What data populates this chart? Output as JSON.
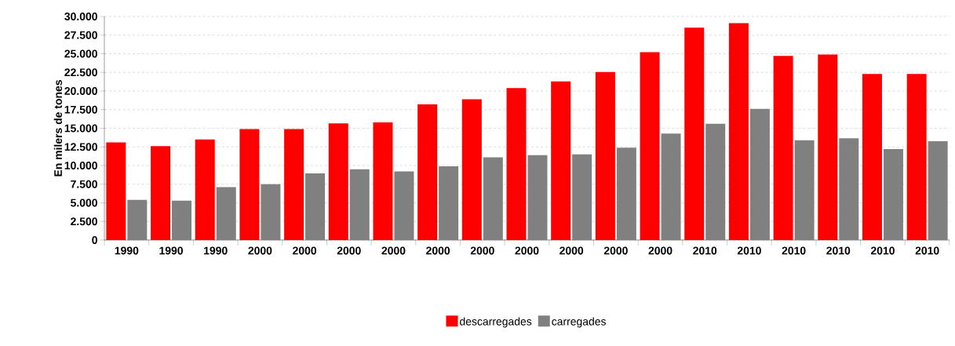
{
  "chart_data": {
    "type": "bar",
    "ylabel": "En milers de tones",
    "categories": [
      "1990",
      "1990",
      "1990",
      "2000",
      "2000",
      "2000",
      "2000",
      "2000",
      "2000",
      "2000",
      "2000",
      "2000",
      "2000",
      "2010",
      "2010",
      "2010",
      "2010",
      "2010",
      "2010"
    ],
    "series": [
      {
        "name": "descarregades",
        "color": "#ff0000",
        "values": [
          13100,
          12600,
          13500,
          14900,
          14900,
          15650,
          15800,
          18200,
          18900,
          20400,
          21300,
          22550,
          25200,
          28500,
          29100,
          24700,
          24900,
          22300,
          22300
        ]
      },
      {
        "name": "carregades",
        "color": "#808080",
        "values": [
          5400,
          5300,
          7100,
          7500,
          8950,
          9500,
          9200,
          9900,
          11100,
          11400,
          11500,
          12400,
          14300,
          15600,
          17600,
          13400,
          13650,
          12200,
          13250
        ]
      }
    ],
    "ylim": [
      0,
      30000
    ],
    "yticks": [
      0,
      {
        "value": 2500,
        "label": "2.500"
      },
      {
        "value": 5000,
        "label": "5.000"
      },
      {
        "value": 7500,
        "label": "7.500"
      },
      {
        "value": 10000,
        "label": "10.000"
      },
      {
        "value": 12500,
        "label": "12.500"
      },
      {
        "value": 15000,
        "label": "15.000"
      },
      {
        "value": 17500,
        "label": "17.500"
      },
      {
        "value": 20000,
        "label": "20.000"
      },
      {
        "value": 22500,
        "label": "22.500"
      },
      {
        "value": 25000,
        "label": "25.000"
      },
      {
        "value": 27500,
        "label": "27.500"
      },
      {
        "value": 30000,
        "label": "30.000"
      }
    ],
    "grid": "y",
    "legend": "bottom"
  }
}
